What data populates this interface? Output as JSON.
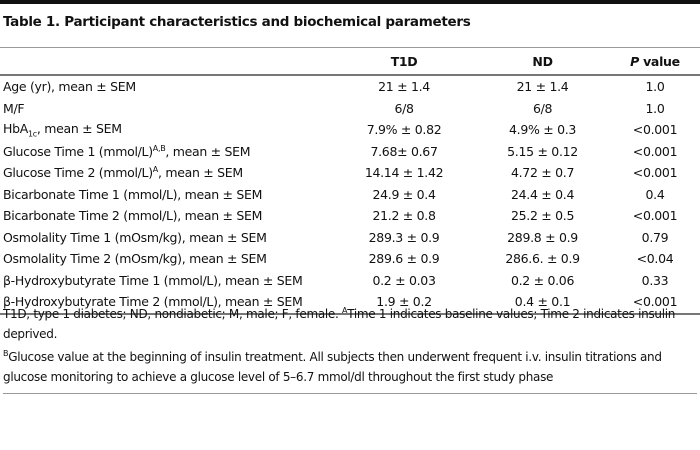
{
  "title": "Table 1. Participant characteristics and biochemical parameters",
  "table": {
    "header": [
      [
        {
          "text": ""
        }
      ],
      [
        {
          "text": "T1D"
        }
      ],
      [
        {
          "text": "ND"
        }
      ],
      [
        {
          "italic": "P"
        },
        {
          "text": " value"
        }
      ]
    ],
    "rows": [
      [
        [
          {
            "text": "Age (yr), mean ± SEM"
          }
        ],
        [
          {
            "text": "21 ± 1.4"
          }
        ],
        [
          {
            "text": "21 ± 1.4"
          }
        ],
        [
          {
            "text": "1.0"
          }
        ]
      ],
      [
        [
          {
            "text": "M/F"
          }
        ],
        [
          {
            "text": "6/8"
          }
        ],
        [
          {
            "text": "6/8"
          }
        ],
        [
          {
            "text": "1.0"
          }
        ]
      ],
      [
        [
          {
            "text": "HbA"
          },
          {
            "sub": "1c"
          },
          {
            "text": ", mean ± SEM"
          }
        ],
        [
          {
            "text": "7.9% ± 0.82"
          }
        ],
        [
          {
            "text": "4.9% ± 0.3"
          }
        ],
        [
          {
            "text": "<0.001"
          }
        ]
      ],
      [
        [
          {
            "text": "Glucose Time 1 (mmol/L)"
          },
          {
            "sup": "A,B"
          },
          {
            "text": ", mean ± SEM"
          }
        ],
        [
          {
            "text": "7.68± 0.67"
          }
        ],
        [
          {
            "text": "5.15 ± 0.12"
          }
        ],
        [
          {
            "text": "<0.001"
          }
        ]
      ],
      [
        [
          {
            "text": "Glucose Time 2 (mmol/L)"
          },
          {
            "sup": "A"
          },
          {
            "text": ", mean ± SEM"
          }
        ],
        [
          {
            "text": "14.14 ± 1.42"
          }
        ],
        [
          {
            "text": "4.72 ± 0.7"
          }
        ],
        [
          {
            "text": "<0.001"
          }
        ]
      ],
      [
        [
          {
            "text": "Bicarbonate Time 1 (mmol/L), mean ± SEM"
          }
        ],
        [
          {
            "text": "24.9 ± 0.4"
          }
        ],
        [
          {
            "text": "24.4 ± 0.4"
          }
        ],
        [
          {
            "text": "0.4"
          }
        ]
      ],
      [
        [
          {
            "text": "Bicarbonate Time 2 (mmol/L), mean ± SEM"
          }
        ],
        [
          {
            "text": "21.2 ± 0.8"
          }
        ],
        [
          {
            "text": "25.2 ± 0.5"
          }
        ],
        [
          {
            "text": "<0.001"
          }
        ]
      ],
      [
        [
          {
            "text": "Osmolality Time 1 (mOsm/kg), mean ± SEM"
          }
        ],
        [
          {
            "text": "289.3 ± 0.9"
          }
        ],
        [
          {
            "text": "289.8 ± 0.9"
          }
        ],
        [
          {
            "text": "0.79"
          }
        ]
      ],
      [
        [
          {
            "text": "Osmolality Time 2 (mOsm/kg), mean ± SEM"
          }
        ],
        [
          {
            "text": "289.6 ± 0.9"
          }
        ],
        [
          {
            "text": "286.6. ± 0.9"
          }
        ],
        [
          {
            "text": "<0.04"
          }
        ]
      ],
      [
        [
          {
            "text": "β-Hydroxybutyrate Time 1 (mmol/L), mean ± SEM"
          }
        ],
        [
          {
            "text": "0.2 ± 0.03"
          }
        ],
        [
          {
            "text": "0.2 ± 0.06"
          }
        ],
        [
          {
            "text": "0.33"
          }
        ]
      ],
      [
        [
          {
            "text": "β-Hydroxybutyrate Time 2 (mmol/L), mean ± SEM"
          }
        ],
        [
          {
            "text": "1.9 ± 0.2"
          }
        ],
        [
          {
            "text": "0.4 ± 0.1"
          }
        ],
        [
          {
            "text": "<0.001"
          }
        ]
      ]
    ]
  },
  "footnote": [
    [
      {
        "text": "T1D, type 1 diabetes; ND, nondiabetic; M, male; F, female. "
      },
      {
        "sup": "A"
      },
      {
        "text": "Time 1 indicates baseline values; Time 2 indicates insulin deprived."
      }
    ],
    [
      {
        "sup": "B"
      },
      {
        "text": "Glucose value at the beginning of insulin treatment. All subjects then underwent frequent i.v. insulin titrations and glucose monitoring to achieve a glucose level of 5–6.7 mmol/dl throughout the first study phase"
      }
    ]
  ]
}
